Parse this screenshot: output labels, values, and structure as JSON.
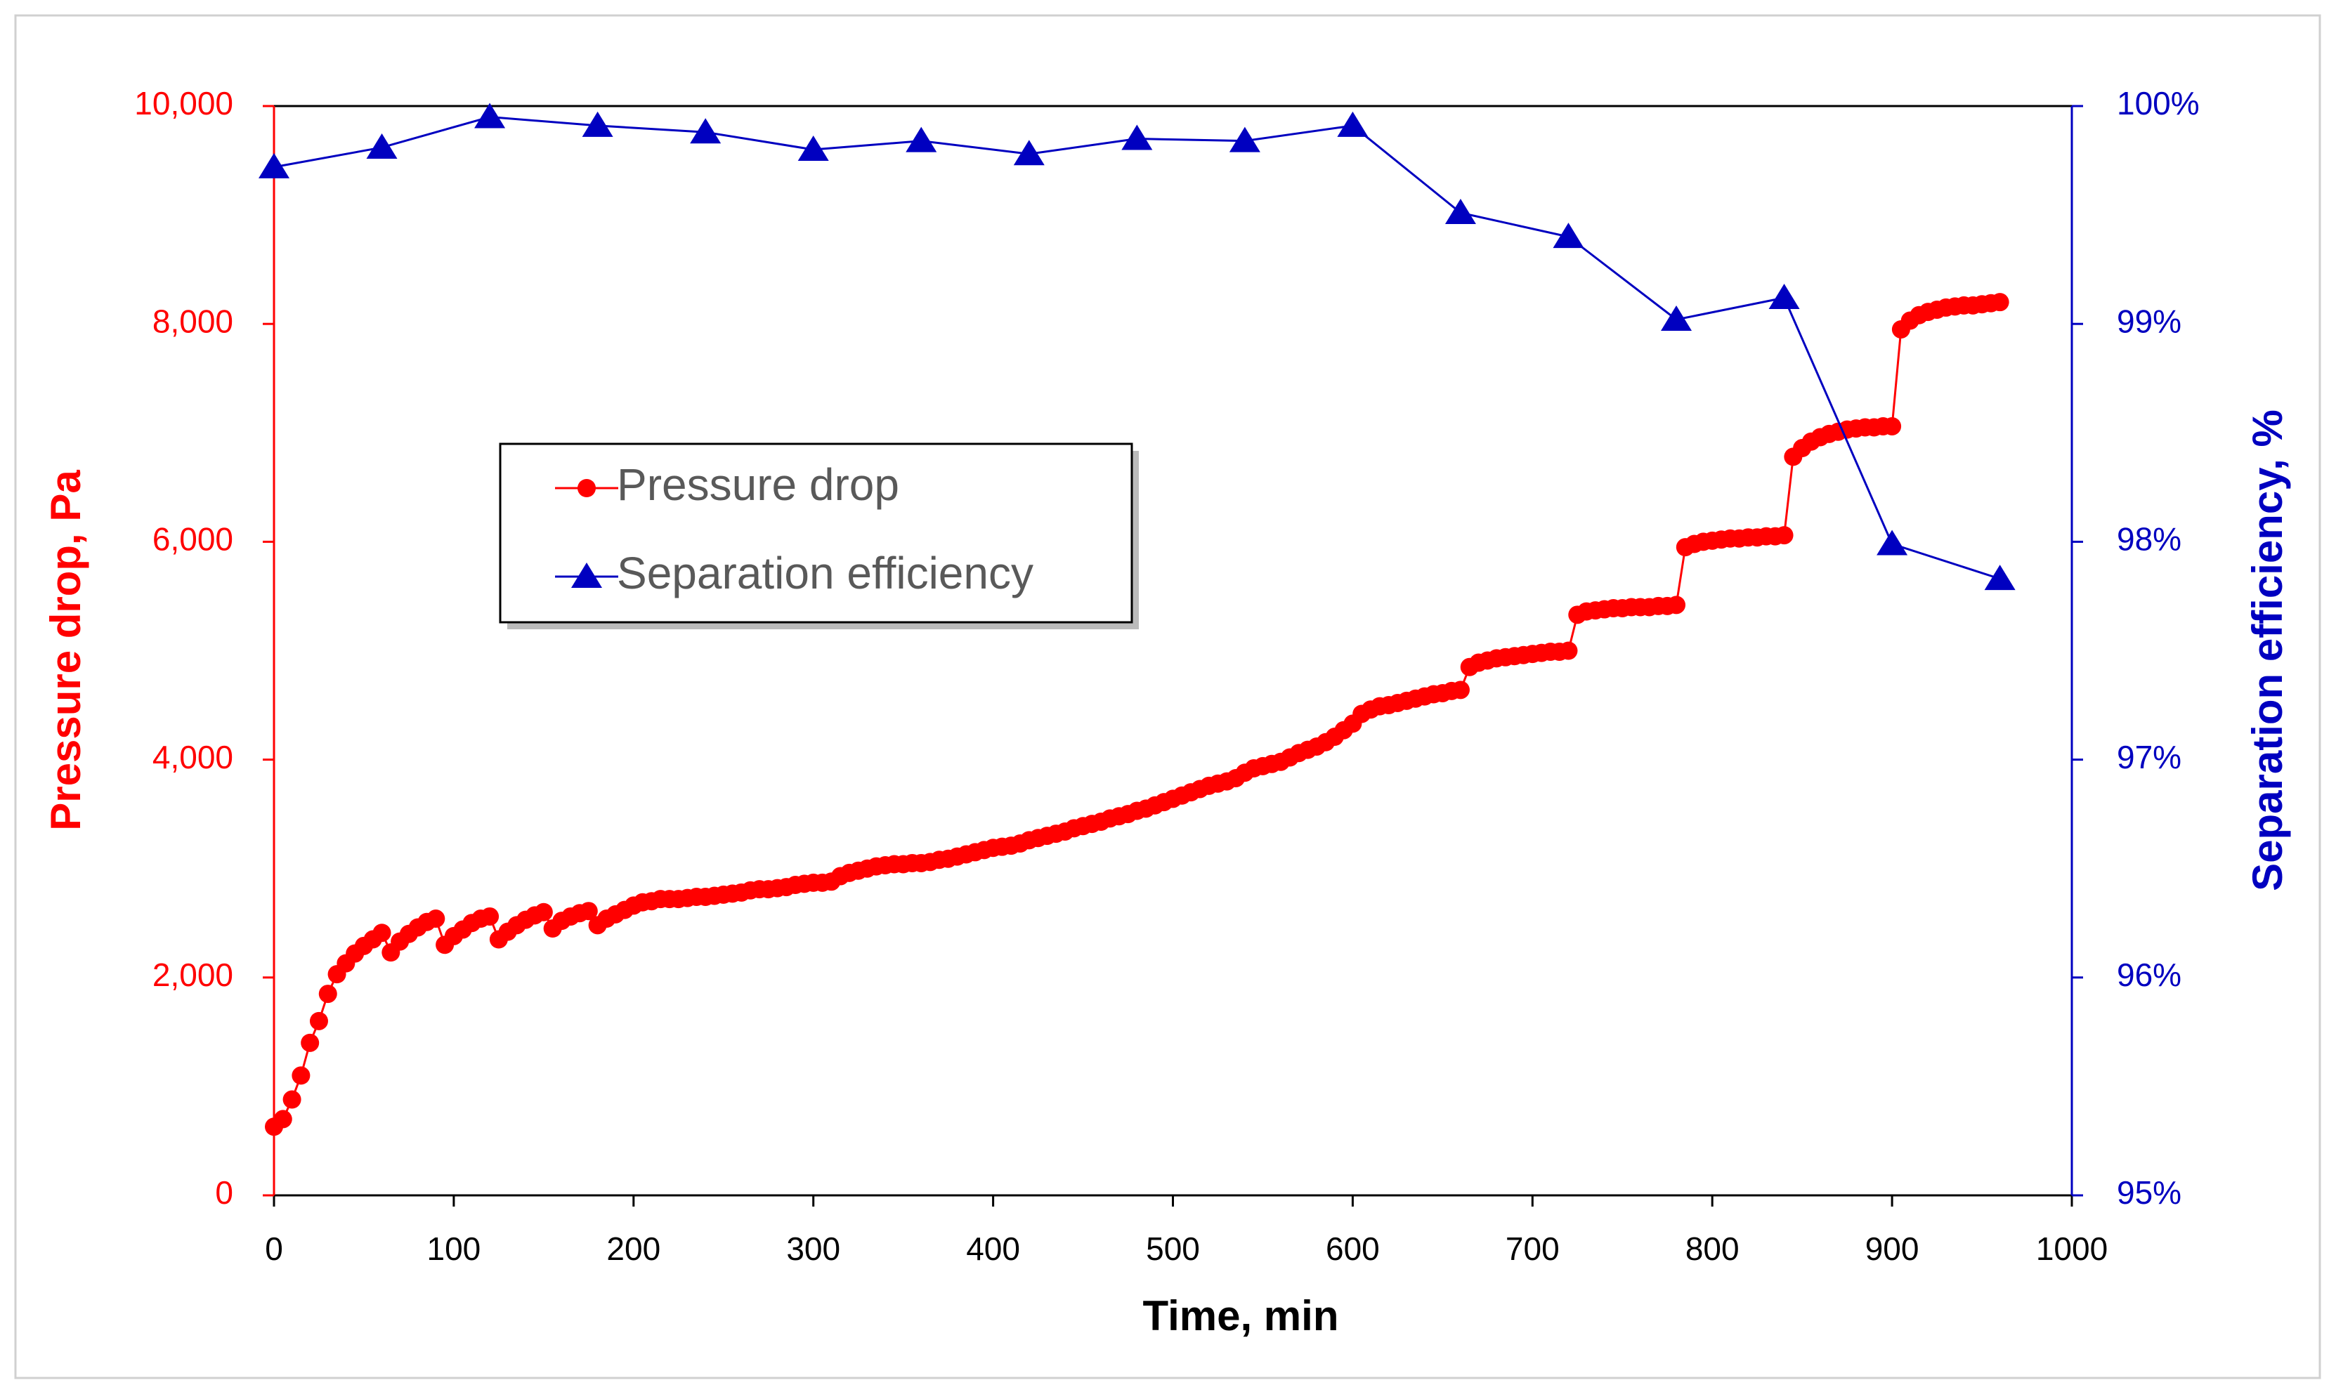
{
  "chart_data": {
    "type": "line",
    "xlabel": "Time, min",
    "ylabel": "Pressure drop, Pa",
    "y2label": "Separation efficiency, %",
    "xlim": [
      0,
      1000
    ],
    "xticks": [
      0,
      100,
      200,
      300,
      400,
      500,
      600,
      700,
      800,
      900,
      1000
    ],
    "ylim": [
      0,
      10000
    ],
    "yticks": [
      0,
      {
        "value": 2000,
        "label": "2,000"
      },
      {
        "value": 4000,
        "label": "4,000"
      },
      {
        "value": 6000,
        "label": "6,000"
      },
      {
        "value": 8000,
        "label": "8,000"
      },
      {
        "value": 10000,
        "label": "10,000"
      }
    ],
    "y2lim": [
      95,
      100
    ],
    "y2ticks": [
      {
        "value": 95,
        "label": "95%"
      },
      {
        "value": 96,
        "label": "96%"
      },
      {
        "value": 97,
        "label": "97%"
      },
      {
        "value": 98,
        "label": "98%"
      },
      {
        "value": 99,
        "label": "99%"
      },
      {
        "value": 100,
        "label": "100%"
      }
    ],
    "series": [
      {
        "name": "Pressure drop",
        "color": "#ff0000",
        "marker": "circle",
        "x": [
          0,
          5,
          10,
          15,
          20,
          25,
          30,
          35,
          40,
          45,
          50,
          55,
          60,
          65,
          70,
          75,
          80,
          85,
          90,
          95,
          100,
          105,
          110,
          115,
          120,
          125,
          130,
          135,
          140,
          145,
          150,
          155,
          160,
          165,
          170,
          175,
          180,
          185,
          190,
          195,
          200,
          205,
          210,
          215,
          220,
          225,
          230,
          235,
          240,
          245,
          250,
          255,
          260,
          265,
          270,
          275,
          280,
          285,
          290,
          295,
          300,
          305,
          310,
          315,
          320,
          325,
          330,
          335,
          340,
          345,
          350,
          355,
          360,
          365,
          370,
          375,
          380,
          385,
          390,
          395,
          400,
          405,
          410,
          415,
          420,
          425,
          430,
          435,
          440,
          445,
          450,
          455,
          460,
          465,
          470,
          475,
          480,
          485,
          490,
          495,
          500,
          505,
          510,
          515,
          520,
          525,
          530,
          535,
          540,
          545,
          550,
          555,
          560,
          565,
          570,
          575,
          580,
          585,
          590,
          595,
          600,
          605,
          610,
          615,
          620,
          625,
          630,
          635,
          640,
          645,
          650,
          655,
          660,
          665,
          670,
          675,
          680,
          685,
          690,
          695,
          700,
          705,
          710,
          715,
          720,
          725,
          730,
          735,
          740,
          745,
          750,
          755,
          760,
          765,
          770,
          775,
          780,
          785,
          790,
          795,
          800,
          805,
          810,
          815,
          820,
          825,
          830,
          835,
          840,
          845,
          850,
          855,
          860,
          865,
          870,
          875,
          880,
          885,
          890,
          895,
          900,
          905,
          910,
          915,
          920,
          925,
          930,
          935,
          940,
          945,
          950,
          955,
          960
        ],
        "values": [
          630,
          700,
          880,
          1100,
          1400,
          1600,
          1850,
          2030,
          2130,
          2220,
          2290,
          2350,
          2410,
          2230,
          2330,
          2400,
          2460,
          2510,
          2540,
          2300,
          2380,
          2440,
          2500,
          2540,
          2560,
          2350,
          2420,
          2480,
          2530,
          2570,
          2600,
          2450,
          2520,
          2560,
          2590,
          2610,
          2480,
          2540,
          2580,
          2620,
          2660,
          2690,
          2700,
          2720,
          2720,
          2720,
          2730,
          2740,
          2740,
          2750,
          2760,
          2770,
          2780,
          2800,
          2810,
          2810,
          2820,
          2830,
          2850,
          2860,
          2870,
          2870,
          2880,
          2930,
          2960,
          2980,
          3000,
          3020,
          3030,
          3040,
          3040,
          3050,
          3050,
          3060,
          3080,
          3090,
          3110,
          3130,
          3150,
          3170,
          3190,
          3200,
          3210,
          3230,
          3260,
          3280,
          3300,
          3320,
          3340,
          3370,
          3390,
          3410,
          3430,
          3460,
          3480,
          3500,
          3530,
          3550,
          3580,
          3610,
          3640,
          3670,
          3700,
          3730,
          3760,
          3780,
          3800,
          3830,
          3880,
          3920,
          3940,
          3960,
          3980,
          4020,
          4060,
          4090,
          4120,
          4160,
          4210,
          4270,
          4330,
          4420,
          4460,
          4490,
          4500,
          4520,
          4540,
          4560,
          4580,
          4600,
          4610,
          4630,
          4640,
          4850,
          4890,
          4910,
          4930,
          4940,
          4950,
          4960,
          4970,
          4980,
          4990,
          4990,
          5000,
          5330,
          5360,
          5370,
          5380,
          5390,
          5390,
          5400,
          5400,
          5400,
          5410,
          5410,
          5420,
          5950,
          5980,
          6000,
          6010,
          6020,
          6030,
          6030,
          6040,
          6040,
          6050,
          6050,
          6060,
          6780,
          6860,
          6920,
          6960,
          6990,
          7010,
          7030,
          7040,
          7050,
          7050,
          7060,
          7060,
          7950,
          8030,
          8080,
          8110,
          8130,
          8150,
          8160,
          8170,
          8170,
          8180,
          8190,
          8200
        ]
      },
      {
        "name": "Separation efficiency",
        "color": "#0000c0",
        "marker": "triangle",
        "axis": "y2",
        "x": [
          0,
          60,
          120,
          180,
          240,
          300,
          360,
          420,
          480,
          540,
          600,
          660,
          720,
          780,
          840,
          900,
          960
        ],
        "values": [
          99.72,
          99.81,
          99.95,
          99.91,
          99.88,
          99.8,
          99.84,
          99.78,
          99.85,
          99.84,
          99.91,
          99.51,
          99.4,
          99.02,
          99.12,
          97.99,
          97.83
        ]
      }
    ]
  }
}
